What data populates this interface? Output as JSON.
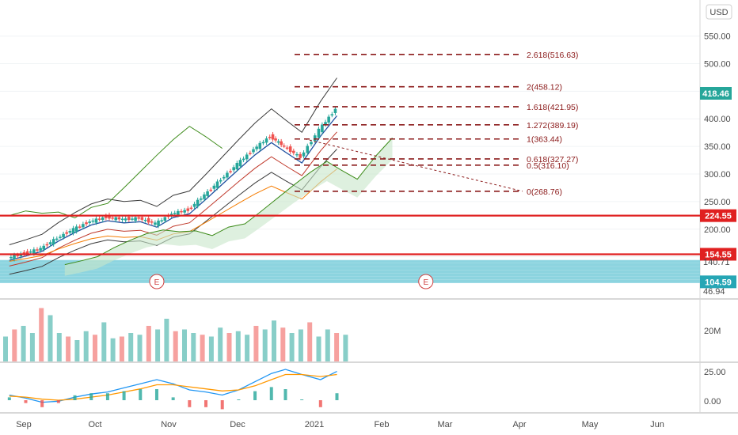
{
  "currency": "USD",
  "last_price": "418.46",
  "price_axis_ticks": [
    "550.00",
    "500.00",
    "450.00",
    "400.00",
    "350.00",
    "300.00",
    "250.00",
    "200.00",
    "150.00"
  ],
  "volume_axis_ticks": [
    "20M"
  ],
  "macd_axis_ticks": [
    "25.00",
    "0.00"
  ],
  "time_axis_labels": [
    "Sep",
    "Oct",
    "Nov",
    "Dec",
    "2021",
    "Feb",
    "Mar",
    "Apr",
    "May",
    "Jun"
  ],
  "earnings_markers": [
    "E",
    "E"
  ],
  "colors": {
    "up": "#26a69a",
    "down": "#ef5350",
    "fib": "#8b1a1a",
    "level": "#e02020",
    "bb": "#3a3a3a",
    "ma_blue": "#1e4fa0",
    "ma_red": "#c0392b",
    "ma_orange": "#f57c00",
    "ichimoku": "#3d8b1a",
    "cloud": "#c8e6c9",
    "band": "#7ecfdc",
    "macd": "#2196f3",
    "signal": "#ff9800"
  },
  "level_tags": [
    {
      "label": "224.55",
      "price": 224.55
    },
    {
      "label": "154.55",
      "price": 154.55
    },
    {
      "label": "104.59",
      "price": 104.59
    }
  ],
  "partial_labels": [
    "140.71",
    "46.94"
  ],
  "chart_data": {
    "type": "line",
    "title": "",
    "price_scale": [
      0,
      560
    ],
    "x_range": [
      "2020-08-24",
      "2021-06-30"
    ],
    "fib_levels": [
      {
        "label": "2.618(516.63)",
        "ratio": 2.618,
        "price": 516.63
      },
      {
        "label": "2(458.12)",
        "ratio": 2,
        "price": 458.12
      },
      {
        "label": "1.618(421.95)",
        "ratio": 1.618,
        "price": 421.95
      },
      {
        "label": "1.272(389.19)",
        "ratio": 1.272,
        "price": 389.19
      },
      {
        "label": "1(363.44)",
        "ratio": 1,
        "price": 363.44
      },
      {
        "label": "0.618(327.27)",
        "ratio": 0.618,
        "price": 327.27
      },
      {
        "label": "0.5(316.10)",
        "ratio": 0.5,
        "price": 316.1
      },
      {
        "label": "0(268.76)",
        "ratio": 0,
        "price": 268.76
      }
    ],
    "horizontal_levels": [
      224.55,
      154.55
    ],
    "support_band": [
      104.59,
      140.71
    ],
    "price_series": {
      "name": "",
      "dates": [
        "2020-08-28",
        "2020-09-04",
        "2020-09-11",
        "2020-09-18",
        "2020-09-25",
        "2020-10-02",
        "2020-10-09",
        "2020-10-16",
        "2020-10-23",
        "2020-10-30",
        "2020-11-06",
        "2020-11-13",
        "2020-11-20",
        "2020-11-27",
        "2020-12-04",
        "2020-12-11",
        "2020-12-18",
        "2020-12-24",
        "2020-12-31",
        "2021-01-08",
        "2021-01-15"
      ],
      "close": [
        148,
        156,
        165,
        184,
        200,
        214,
        222,
        218,
        220,
        210,
        228,
        235,
        262,
        290,
        318,
        345,
        368,
        350,
        330,
        380,
        418
      ]
    },
    "volume_series": {
      "name": "",
      "values": [
        14,
        18,
        20,
        16,
        30,
        26,
        16,
        14,
        12,
        17,
        15,
        22,
        13,
        14,
        16,
        15,
        20,
        18,
        24,
        17,
        18,
        16,
        15,
        14,
        19,
        16,
        17,
        15,
        20,
        18,
        23,
        19,
        16,
        18,
        22,
        14,
        18,
        16,
        15
      ]
    },
    "macd_series": {
      "name": "",
      "values": [
        5,
        2,
        -2,
        -1,
        3,
        6,
        8,
        12,
        16,
        20,
        16,
        10,
        8,
        5,
        10,
        18,
        26,
        30,
        25,
        20,
        28
      ]
    },
    "signal_series": {
      "name": "",
      "values": [
        4,
        3,
        1,
        0,
        1,
        3,
        5,
        8,
        11,
        15,
        15,
        13,
        11,
        9,
        10,
        14,
        20,
        25,
        25,
        23,
        25
      ]
    }
  }
}
